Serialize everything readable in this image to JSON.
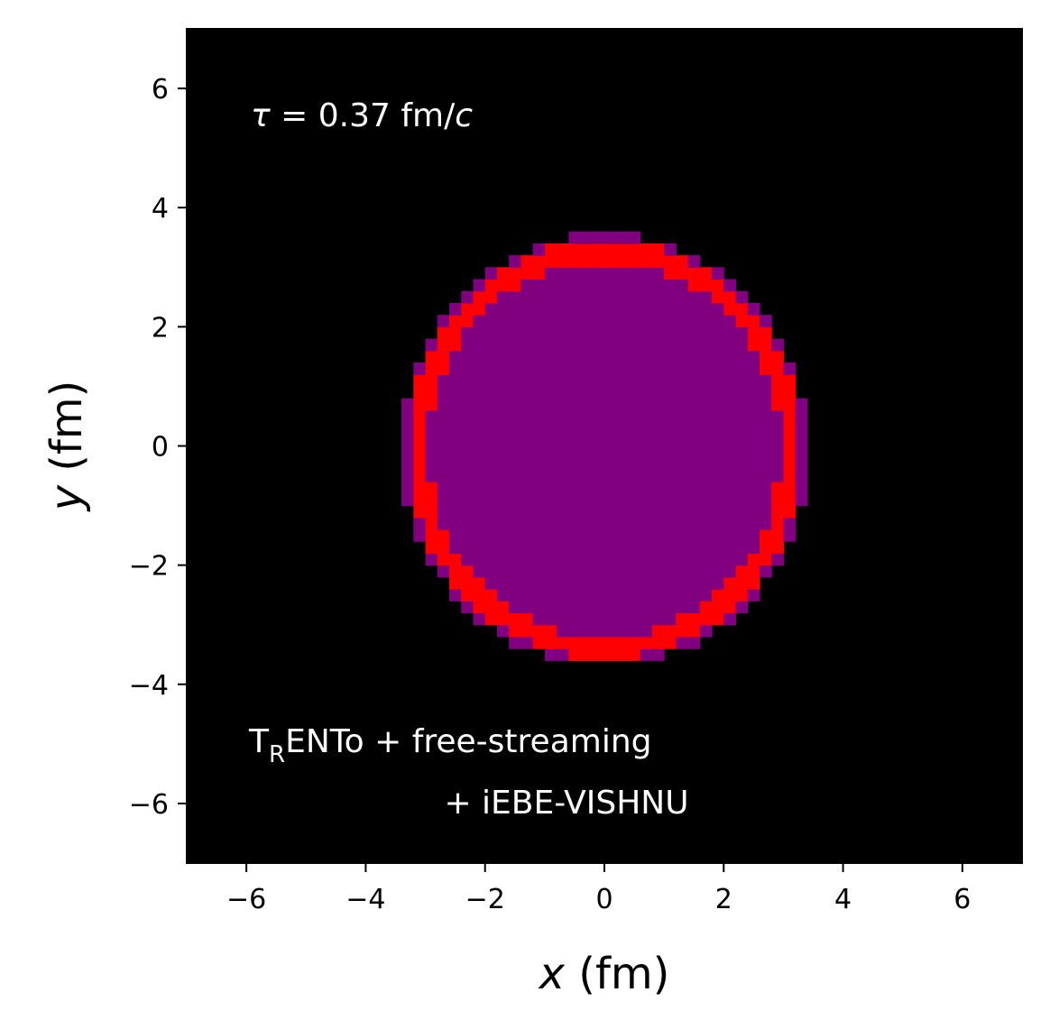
{
  "chart_data": {
    "type": "heatmap",
    "xlabel_var": "x",
    "xlabel_unit": " (fm)",
    "ylabel_var": "y",
    "ylabel_unit": " (fm)",
    "xlim": [
      -7,
      7
    ],
    "ylim": [
      -7,
      7
    ],
    "xticks": [
      -6,
      -4,
      -2,
      0,
      2,
      4,
      6
    ],
    "yticks": [
      -6,
      -4,
      -2,
      0,
      2,
      4,
      6
    ],
    "xtick_labels": [
      "−6",
      "−4",
      "−2",
      "0",
      "2",
      "4",
      "6"
    ],
    "ytick_labels": [
      "−6",
      "−4",
      "−2",
      "0",
      "2",
      "4",
      "6"
    ],
    "grid": false,
    "time_annotation": {
      "symbol": "τ",
      "equals": " = 0.37 fm/",
      "unit_var": "c"
    },
    "model_annotation": {
      "line1_T": "T",
      "line1_sub": "R",
      "line1_rest": "ENTo + free-streaming",
      "line2": "+ iEBE-VISHNU"
    },
    "background_color": "#000000",
    "region": {
      "center_x": 0.0,
      "center_y": -0.05,
      "outer_radius_x": 3.3,
      "outer_radius_y": 3.5,
      "ring_width": 0.35,
      "interior_color": "#800080",
      "ring_color": "#ff0000",
      "edge_color": "#800080"
    }
  }
}
